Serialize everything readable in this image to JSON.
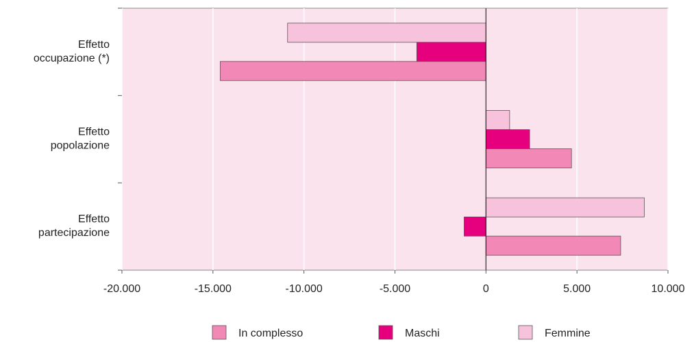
{
  "chart_data": {
    "type": "hbar",
    "categories": [
      "Effetto\noccupazione (*)",
      "Effetto\npopolazione",
      "Effetto\npartecipazione"
    ],
    "series": [
      {
        "name": "In complesso",
        "color": "#f288b6",
        "values": [
          -14600,
          4700,
          7400
        ]
      },
      {
        "name": "Maschi",
        "color": "#e6007e",
        "values": [
          -3800,
          2400,
          -1200
        ]
      },
      {
        "name": "Femmine",
        "color": "#f7c3dc",
        "values": [
          -10900,
          1300,
          8700
        ]
      }
    ],
    "xlim": [
      -20000,
      10000
    ],
    "xticks": [
      {
        "value": -20000,
        "label": "-20.000"
      },
      {
        "value": -15000,
        "label": "-15.000"
      },
      {
        "value": -10000,
        "label": "-10.000"
      },
      {
        "value": -5000,
        "label": "-5.000"
      },
      0,
      {
        "value": 5000,
        "label": "5.000"
      },
      {
        "value": 10000,
        "label": "10.000"
      }
    ],
    "grid": true,
    "legend": "bottom"
  }
}
